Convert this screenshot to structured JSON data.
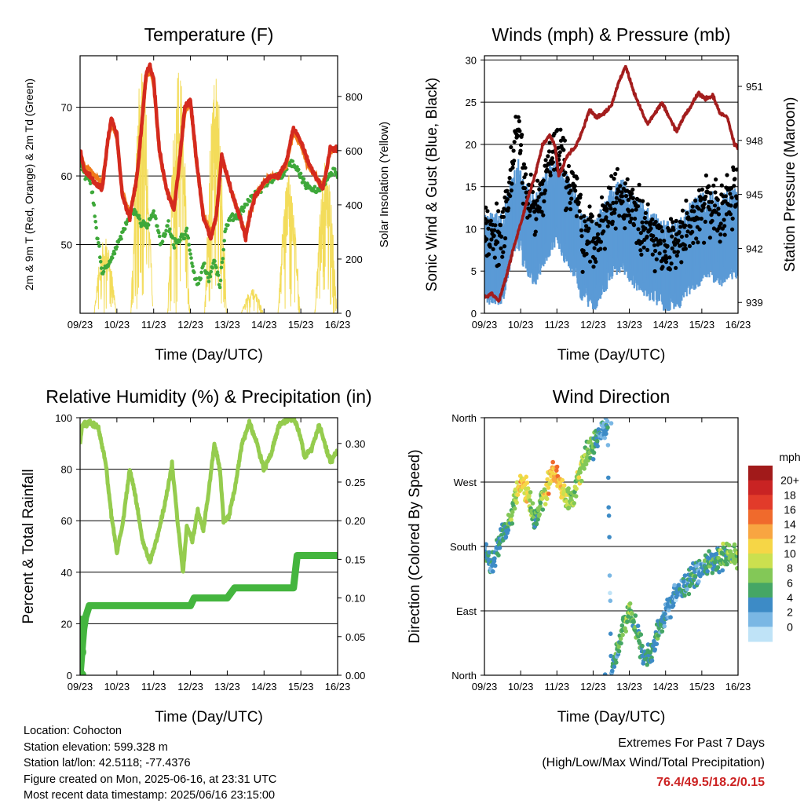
{
  "info": {
    "location": "Location: Cohocton",
    "elevation": "Station elevation: 599.328 m",
    "latlon": "Station lat/lon: 42.5118; -77.4376",
    "created": "Figure created on Mon, 2025-06-16, at 23:31 UTC",
    "timestamp": "Most recent data timestamp: 2025/06/16 23:15:00"
  },
  "extremes": {
    "title": "Extremes For Past 7 Days",
    "subtitle": "(High/Low/Max Wind/Total Precipitation)",
    "values": "76.4/49.5/18.2/0.15"
  },
  "colors": {
    "temp_2m": "#d42a1e",
    "temp_9m": "#f07a1a",
    "dewpoint": "#3ea83a",
    "solar": "#f3dc5a",
    "wind": "#5a9ad6",
    "gust": "#000000",
    "pressure": "#a31d1d",
    "rh": "#95cc4e",
    "precip": "#44b53e"
  },
  "chart_data": [
    {
      "type": "line",
      "title": "Temperature (F)",
      "xlabel": "Time (Day/UTC)",
      "ylabel": "2m & 9m T (Red, Orange) & 2m Td (Green)",
      "y2label": "Solar Insolation (Yellow)",
      "x_ticks": [
        "09/23",
        "10/23",
        "11/23",
        "12/23",
        "13/23",
        "14/23",
        "15/23",
        "16/23"
      ],
      "x_range": [
        0,
        7
      ],
      "ylim": [
        40,
        77.5
      ],
      "y_ticks": [
        50,
        60,
        70
      ],
      "y2lim": [
        0,
        950
      ],
      "y2_ticks": [
        0,
        200,
        400,
        600,
        800
      ],
      "grid": true,
      "series": [
        {
          "name": "2m T",
          "axis": "left",
          "style": "thick",
          "x": [
            0,
            0.1,
            0.25,
            0.4,
            0.6,
            0.75,
            0.85,
            1.0,
            1.15,
            1.35,
            1.55,
            1.7,
            1.8,
            1.9,
            2.0,
            2.15,
            2.35,
            2.55,
            2.7,
            2.85,
            3.0,
            3.15,
            3.35,
            3.55,
            3.7,
            3.85,
            4.0,
            4.15,
            4.35,
            4.5,
            4.6,
            4.75,
            5.0,
            5.2,
            5.4,
            5.6,
            5.8,
            6.0,
            6.2,
            6.4,
            6.6,
            6.8,
            7.0
          ],
          "y": [
            64,
            61,
            60,
            59,
            58,
            65,
            68.5,
            66,
            57,
            54,
            60,
            69,
            75,
            76,
            74,
            64,
            58,
            55,
            62,
            70,
            71,
            63,
            54,
            51,
            54,
            63,
            60,
            57,
            54,
            51,
            54,
            57,
            59,
            60,
            60,
            62,
            67,
            65,
            62,
            60,
            58,
            64,
            64
          ]
        },
        {
          "name": "9m T",
          "axis": "left",
          "style": "medium",
          "x": [
            0,
            0.1,
            0.25,
            0.4,
            0.6,
            0.75,
            0.85,
            1.0,
            1.15,
            1.35,
            1.55,
            1.7,
            1.8,
            1.9,
            2.0,
            2.15,
            2.35,
            2.55,
            2.7,
            2.85,
            3.0,
            3.15,
            3.35,
            3.55,
            3.7,
            3.85,
            4.0,
            4.15,
            4.35,
            4.5,
            4.6,
            4.75,
            5.0,
            5.2,
            5.4,
            5.6,
            5.8,
            6.0,
            6.2,
            6.4,
            6.6,
            6.8,
            7.0
          ],
          "y": [
            63.5,
            61.5,
            61,
            60,
            59,
            64.5,
            68,
            65.5,
            57.5,
            54.5,
            60,
            68.5,
            74.5,
            75.5,
            73.5,
            63.5,
            58,
            55.5,
            61.5,
            69.5,
            70.5,
            62.5,
            54.5,
            51.5,
            54,
            62.5,
            60,
            57,
            54,
            51.5,
            54,
            57,
            59,
            60,
            60,
            61.5,
            66.5,
            64.5,
            61.5,
            60,
            58.5,
            63.5,
            64
          ]
        },
        {
          "name": "2m Td",
          "axis": "left",
          "style": "dots",
          "x": [
            0,
            0.15,
            0.3,
            0.45,
            0.6,
            0.75,
            0.95,
            1.1,
            1.25,
            1.45,
            1.65,
            1.85,
            2.0,
            2.2,
            2.4,
            2.55,
            2.75,
            2.9,
            3.05,
            3.2,
            3.35,
            3.5,
            3.65,
            3.8,
            3.95,
            4.1,
            4.3,
            4.5,
            4.7,
            4.9,
            5.1,
            5.3,
            5.5,
            5.7,
            5.9,
            6.1,
            6.3,
            6.5,
            6.7,
            6.9,
            7.0
          ],
          "y": [
            62,
            60,
            59,
            52,
            46,
            47,
            49,
            51,
            53,
            55,
            53,
            53,
            55,
            50,
            53,
            50,
            51,
            52,
            47,
            44,
            47,
            45,
            48,
            44,
            52,
            54,
            54,
            56,
            57,
            58,
            59,
            60,
            60,
            62,
            61,
            59,
            58,
            58,
            59,
            61,
            60
          ]
        },
        {
          "name": "Solar Insolation",
          "axis": "right",
          "style": "spikes",
          "days": [
            0,
            1,
            2,
            3,
            4,
            5,
            6
          ],
          "peaks": [
            280,
            910,
            920,
            880,
            90,
            520,
            580
          ]
        }
      ]
    },
    {
      "type": "scatter",
      "title": "Winds (mph) & Pressure (mb)",
      "xlabel": "Time (Day/UTC)",
      "ylabel": "Sonic Wind & Gust (Blue, Black)",
      "y2label": "Station Pressure (Maroon)",
      "x_ticks": [
        "09/23",
        "10/23",
        "11/23",
        "12/23",
        "13/23",
        "14/23",
        "15/23",
        "16/23"
      ],
      "x_range": [
        0,
        7
      ],
      "ylim": [
        0,
        30.5
      ],
      "y_ticks": [
        0,
        5,
        10,
        15,
        20,
        25,
        30
      ],
      "y2lim": [
        938.4,
        952.7
      ],
      "y2_ticks": [
        939,
        942,
        945,
        948,
        951
      ],
      "grid": true,
      "series": [
        {
          "name": "Sonic Wind",
          "axis": "left",
          "x": [
            0,
            0.5,
            0.9,
            1.1,
            1.4,
            1.7,
            2.0,
            2.2,
            2.5,
            2.7,
            3.0,
            3.3,
            3.5,
            3.8,
            4.1,
            4.4,
            4.7,
            5.0,
            5.3,
            5.6,
            5.9,
            6.2,
            6.5,
            6.8,
            7.0
          ],
          "y": [
            6,
            6,
            13,
            10,
            8,
            11,
            13,
            11,
            9,
            6,
            5,
            7,
            9,
            10,
            8,
            7,
            6,
            5,
            5,
            7,
            8,
            9,
            8,
            9,
            9
          ]
        },
        {
          "name": "Gust",
          "axis": "left",
          "x": [
            0,
            0.5,
            0.9,
            1.1,
            1.4,
            1.7,
            2.0,
            2.2,
            2.5,
            2.7,
            3.0,
            3.3,
            3.5,
            3.8,
            4.1,
            4.4,
            4.7,
            5.0,
            5.3,
            5.6,
            5.9,
            6.2,
            6.5,
            6.8,
            7.0
          ],
          "y": [
            9,
            9,
            22,
            16,
            12,
            16,
            20,
            17,
            14,
            9,
            8,
            11,
            13,
            14,
            12,
            10,
            9,
            8,
            8,
            10,
            12,
            13,
            12,
            14,
            13
          ]
        },
        {
          "name": "Station Pressure",
          "axis": "right",
          "x": [
            0,
            0.2,
            0.4,
            0.6,
            0.8,
            1.0,
            1.2,
            1.4,
            1.6,
            1.8,
            1.95,
            2.05,
            2.3,
            2.5,
            2.7,
            2.9,
            3.1,
            3.3,
            3.5,
            3.7,
            3.9,
            4.1,
            4.3,
            4.5,
            4.7,
            4.9,
            5.1,
            5.3,
            5.5,
            5.7,
            5.9,
            6.1,
            6.3,
            6.5,
            6.7,
            6.9,
            7.0
          ],
          "y": [
            939.3,
            939.5,
            939.1,
            940.4,
            942.0,
            943.4,
            944.8,
            946.1,
            947.7,
            948.3,
            947.7,
            946.0,
            947.2,
            947.6,
            948.5,
            949.7,
            949.3,
            949.5,
            949.9,
            951.2,
            952.1,
            950.8,
            949.8,
            948.9,
            949.5,
            950.1,
            949.3,
            948.5,
            949.3,
            949.9,
            950.6,
            950.3,
            950.5,
            949.5,
            949.3,
            947.8,
            947.6
          ]
        }
      ]
    },
    {
      "type": "line",
      "title": "Relative Humidity (%) & Precipitation (in)",
      "xlabel": "Time (Day/UTC)",
      "ylabel": "Percent & Total Rainfall",
      "x_ticks": [
        "09/23",
        "10/23",
        "11/23",
        "12/23",
        "13/23",
        "14/23",
        "15/23",
        "16/23"
      ],
      "x_range": [
        0,
        7
      ],
      "ylim": [
        0,
        100
      ],
      "y_ticks": [
        0,
        20,
        40,
        60,
        80,
        100
      ],
      "y2lim": [
        0,
        0.3333
      ],
      "y2_ticks": [
        "0.00",
        "0.05",
        "0.10",
        "0.15",
        "0.20",
        "0.25",
        "0.30"
      ],
      "grid": true,
      "series": [
        {
          "name": "Relative Humidity",
          "axis": "left",
          "x": [
            0,
            0.05,
            0.3,
            0.5,
            0.7,
            0.85,
            1.0,
            1.15,
            1.35,
            1.5,
            1.7,
            1.9,
            2.1,
            2.3,
            2.5,
            2.65,
            2.75,
            2.8,
            2.9,
            3.05,
            3.2,
            3.35,
            3.5,
            3.65,
            3.8,
            3.9,
            4.05,
            4.2,
            4.4,
            4.6,
            4.8,
            5.0,
            5.2,
            5.4,
            5.6,
            5.8,
            6.0,
            6.1,
            6.3,
            6.5,
            6.65,
            6.8,
            7.0
          ],
          "y": [
            90,
            97,
            98,
            96,
            82,
            62,
            48,
            58,
            80,
            70,
            52,
            44,
            54,
            66,
            82,
            60,
            46,
            40,
            58,
            52,
            64,
            56,
            72,
            90,
            80,
            60,
            62,
            72,
            90,
            98,
            90,
            80,
            86,
            97,
            99,
            100,
            92,
            85,
            88,
            97,
            90,
            83,
            87
          ]
        },
        {
          "name": "Total Precipitation",
          "axis": "right",
          "x": [
            0,
            0.05,
            0.1,
            0.15,
            0.25,
            0.5,
            1.0,
            2.0,
            3.0,
            3.1,
            4.0,
            4.2,
            4.6,
            5.0,
            5.8,
            5.9,
            6.5,
            7.0
          ],
          "y": [
            0.0,
            0.03,
            0.06,
            0.075,
            0.09,
            0.09,
            0.09,
            0.09,
            0.09,
            0.1,
            0.1,
            0.113,
            0.113,
            0.113,
            0.113,
            0.155,
            0.155,
            0.155
          ]
        }
      ]
    },
    {
      "type": "scatter",
      "title": "Wind Direction",
      "xlabel": "Time (Day/UTC)",
      "ylabel": "Direction (Colored By Speed)",
      "x_ticks": [
        "09/23",
        "10/23",
        "11/23",
        "12/23",
        "13/23",
        "14/23",
        "15/23",
        "16/23"
      ],
      "x_range": [
        0,
        7
      ],
      "ylim": [
        0,
        360
      ],
      "y_ticks": [
        "North",
        "East",
        "South",
        "West",
        "North"
      ],
      "colorbar": {
        "title": "mph",
        "labels": [
          "20+",
          "18",
          "16",
          "14",
          "12",
          "10",
          "8",
          "6",
          "4",
          "2",
          "0"
        ],
        "colors": [
          "#a11a1a",
          "#c92323",
          "#e23b2a",
          "#f06a2c",
          "#f8a541",
          "#f6d646",
          "#cbe04f",
          "#83c857",
          "#45a665",
          "#3d8bc6",
          "#7ab7e4",
          "#bfe3f7"
        ]
      },
      "series": [
        {
          "name": "Direction",
          "x": [
            0,
            0.2,
            0.4,
            0.6,
            0.8,
            1.0,
            1.2,
            1.4,
            1.6,
            1.8,
            2.0,
            2.2,
            2.4,
            2.6,
            2.8,
            3.0,
            3.2,
            3.4,
            3.5,
            3.6,
            3.8,
            4.0,
            4.2,
            4.4,
            4.6,
            4.8,
            5.0,
            5.2,
            5.4,
            5.6,
            5.8,
            6.0,
            6.2,
            6.4,
            6.6,
            6.8,
            7.0
          ],
          "y": [
            180,
            150,
            190,
            200,
            240,
            270,
            255,
            210,
            245,
            275,
            285,
            255,
            240,
            280,
            305,
            320,
            340,
            350,
            5,
            20,
            60,
            90,
            60,
            25,
            30,
            60,
            90,
            105,
            120,
            130,
            140,
            150,
            155,
            160,
            165,
            170,
            168
          ],
          "speed": [
            6,
            5,
            6,
            6,
            9,
            14,
            12,
            6,
            10,
            14,
            15,
            12,
            9,
            10,
            9,
            7,
            5,
            4,
            4,
            6,
            8,
            9,
            7,
            5,
            6,
            7,
            5,
            4,
            5,
            5,
            6,
            5,
            7,
            6,
            8,
            8,
            9
          ]
        }
      ]
    }
  ]
}
